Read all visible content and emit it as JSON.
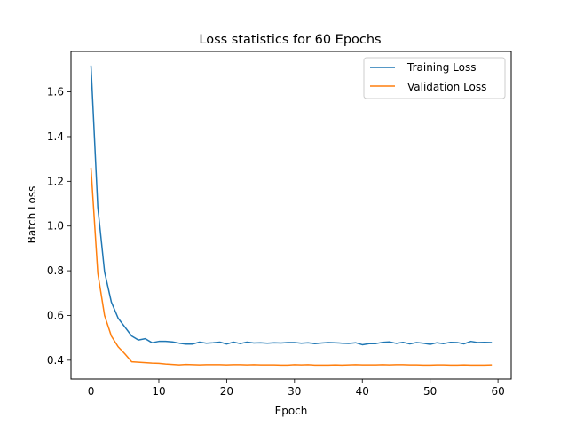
{
  "chart_data": {
    "type": "line",
    "title": "Loss statistics for 60 Epochs",
    "xlabel": "Epoch",
    "ylabel": "Batch Loss",
    "xlim": [
      -2.95,
      61.95
    ],
    "ylim": [
      0.316,
      1.781
    ],
    "xticks": [
      0,
      10,
      20,
      30,
      40,
      50,
      60
    ],
    "yticks": [
      0.4,
      0.6,
      0.8,
      1.0,
      1.2,
      1.4,
      1.6
    ],
    "xtick_labels": [
      "0",
      "10",
      "20",
      "30",
      "40",
      "50",
      "60"
    ],
    "ytick_labels": [
      "0.4",
      "0.6",
      "0.8",
      "1.0",
      "1.2",
      "1.4",
      "1.6"
    ],
    "grid": false,
    "legend_position": "top-right",
    "x": [
      0,
      1,
      2,
      3,
      4,
      5,
      6,
      7,
      8,
      9,
      10,
      11,
      12,
      13,
      14,
      15,
      16,
      17,
      18,
      19,
      20,
      21,
      22,
      23,
      24,
      25,
      26,
      27,
      28,
      29,
      30,
      31,
      32,
      33,
      34,
      35,
      36,
      37,
      38,
      39,
      40,
      41,
      42,
      43,
      44,
      45,
      46,
      47,
      48,
      49,
      50,
      51,
      52,
      53,
      54,
      55,
      56,
      57,
      58,
      59
    ],
    "series": [
      {
        "name": "Training Loss",
        "color": "#1f77b4",
        "values": [
          1.715,
          1.085,
          0.795,
          0.66,
          0.588,
          0.548,
          0.508,
          0.49,
          0.496,
          0.478,
          0.484,
          0.484,
          0.482,
          0.476,
          0.472,
          0.472,
          0.481,
          0.476,
          0.478,
          0.481,
          0.472,
          0.481,
          0.474,
          0.481,
          0.477,
          0.478,
          0.476,
          0.478,
          0.477,
          0.479,
          0.479,
          0.476,
          0.478,
          0.474,
          0.477,
          0.479,
          0.478,
          0.476,
          0.475,
          0.478,
          0.469,
          0.474,
          0.474,
          0.48,
          0.482,
          0.475,
          0.48,
          0.473,
          0.479,
          0.476,
          0.471,
          0.478,
          0.474,
          0.48,
          0.479,
          0.473,
          0.484,
          0.479,
          0.48,
          0.479
        ]
      },
      {
        "name": "Validation Loss",
        "color": "#ff7f0e",
        "values": [
          1.258,
          0.79,
          0.6,
          0.508,
          0.46,
          0.428,
          0.393,
          0.391,
          0.389,
          0.387,
          0.386,
          0.383,
          0.381,
          0.379,
          0.381,
          0.38,
          0.379,
          0.38,
          0.38,
          0.38,
          0.379,
          0.38,
          0.38,
          0.379,
          0.38,
          0.379,
          0.379,
          0.379,
          0.378,
          0.378,
          0.38,
          0.379,
          0.38,
          0.378,
          0.378,
          0.378,
          0.379,
          0.378,
          0.379,
          0.38,
          0.379,
          0.379,
          0.379,
          0.38,
          0.379,
          0.38,
          0.38,
          0.379,
          0.379,
          0.378,
          0.378,
          0.379,
          0.379,
          0.378,
          0.378,
          0.379,
          0.378,
          0.378,
          0.378,
          0.379
        ]
      }
    ]
  }
}
